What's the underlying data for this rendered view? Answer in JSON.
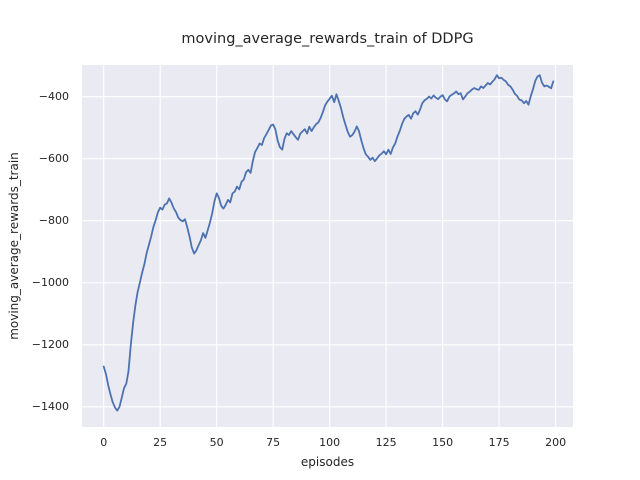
{
  "figure": {
    "title": "moving_average_rewards_train of DDPG",
    "xlabel": "episodes",
    "ylabel": "moving_average_rewards_train"
  },
  "chart_data": {
    "type": "line",
    "title": "moving_average_rewards_train of DDPG",
    "xlabel": "episodes",
    "ylabel": "moving_average_rewards_train",
    "legend": "none",
    "grid": true,
    "style": "seaborn-darkgrid",
    "line_color": "#4c72b0",
    "axes_bg_color": "#eaeaf2",
    "grid_color": "#ffffff",
    "text_color": "#262626",
    "figure_bg_color": "#ffffff",
    "xlim": [
      -9.6,
      207.7
    ],
    "ylim": [
      -1465,
      -298
    ],
    "xticks": [
      0,
      25,
      50,
      75,
      100,
      125,
      150,
      175,
      200
    ],
    "yticks": [
      -400,
      -600,
      -800,
      -1000,
      -1200,
      -1400
    ],
    "ytick_labels": [
      "−400",
      "−600",
      "−800",
      "−1000",
      "−1200",
      "−1400"
    ],
    "x": [
      0,
      1,
      2,
      3,
      4,
      5,
      6,
      7,
      8,
      9,
      10,
      11,
      12,
      13,
      14,
      15,
      16,
      17,
      18,
      19,
      20,
      21,
      22,
      23,
      24,
      25,
      26,
      27,
      28,
      29,
      30,
      31,
      32,
      33,
      34,
      35,
      36,
      37,
      38,
      39,
      40,
      41,
      42,
      43,
      44,
      45,
      46,
      47,
      48,
      49,
      50,
      51,
      52,
      53,
      54,
      55,
      56,
      57,
      58,
      59,
      60,
      61,
      62,
      63,
      64,
      65,
      66,
      67,
      68,
      69,
      70,
      71,
      72,
      73,
      74,
      75,
      76,
      77,
      78,
      79,
      80,
      81,
      82,
      83,
      84,
      85,
      86,
      87,
      88,
      89,
      90,
      91,
      92,
      93,
      94,
      95,
      96,
      97,
      98,
      99,
      100,
      101,
      102,
      103,
      104,
      105,
      106,
      107,
      108,
      109,
      110,
      111,
      112,
      113,
      114,
      115,
      116,
      117,
      118,
      119,
      120,
      121,
      122,
      123,
      124,
      125,
      126,
      127,
      128,
      129,
      130,
      131,
      132,
      133,
      134,
      135,
      136,
      137,
      138,
      139,
      140,
      141,
      142,
      143,
      144,
      145,
      146,
      147,
      148,
      149,
      150,
      151,
      152,
      153,
      154,
      155,
      156,
      157,
      158,
      159,
      160,
      161,
      162,
      163,
      164,
      165,
      166,
      167,
      168,
      169,
      170,
      171,
      172,
      173,
      174,
      175,
      176,
      177,
      178,
      179,
      180,
      181,
      182,
      183,
      184,
      185,
      186,
      187,
      188,
      189,
      190,
      191,
      192,
      193,
      194,
      195,
      196,
      197,
      198,
      199
    ],
    "y": [
      -1270,
      -1295,
      -1330,
      -1360,
      -1385,
      -1402,
      -1412,
      -1400,
      -1370,
      -1340,
      -1325,
      -1285,
      -1200,
      -1130,
      -1075,
      -1030,
      -1000,
      -968,
      -940,
      -905,
      -878,
      -852,
      -820,
      -798,
      -773,
      -758,
      -764,
      -748,
      -744,
      -728,
      -742,
      -760,
      -772,
      -790,
      -798,
      -802,
      -795,
      -822,
      -852,
      -886,
      -906,
      -896,
      -879,
      -863,
      -840,
      -855,
      -832,
      -806,
      -776,
      -738,
      -712,
      -726,
      -752,
      -761,
      -749,
      -733,
      -741,
      -712,
      -706,
      -690,
      -699,
      -675,
      -667,
      -644,
      -636,
      -646,
      -608,
      -578,
      -566,
      -551,
      -556,
      -534,
      -521,
      -508,
      -493,
      -490,
      -506,
      -542,
      -563,
      -571,
      -536,
      -518,
      -524,
      -511,
      -521,
      -531,
      -539,
      -519,
      -512,
      -505,
      -519,
      -497,
      -511,
      -499,
      -489,
      -483,
      -469,
      -450,
      -428,
      -416,
      -407,
      -397,
      -418,
      -392,
      -413,
      -436,
      -466,
      -491,
      -513,
      -529,
      -524,
      -513,
      -496,
      -511,
      -541,
      -566,
      -586,
      -594,
      -604,
      -597,
      -608,
      -599,
      -589,
      -584,
      -576,
      -586,
      -571,
      -585,
      -564,
      -551,
      -529,
      -511,
      -489,
      -472,
      -464,
      -459,
      -471,
      -454,
      -447,
      -458,
      -442,
      -421,
      -412,
      -407,
      -400,
      -406,
      -396,
      -403,
      -408,
      -400,
      -395,
      -409,
      -415,
      -400,
      -394,
      -390,
      -383,
      -392,
      -389,
      -409,
      -400,
      -389,
      -384,
      -377,
      -372,
      -376,
      -378,
      -367,
      -372,
      -364,
      -356,
      -361,
      -352,
      -344,
      -331,
      -341,
      -339,
      -346,
      -351,
      -362,
      -367,
      -378,
      -391,
      -398,
      -410,
      -412,
      -421,
      -414,
      -426,
      -399,
      -376,
      -349,
      -335,
      -331,
      -355,
      -367,
      -364,
      -368,
      -373,
      -351
    ]
  }
}
